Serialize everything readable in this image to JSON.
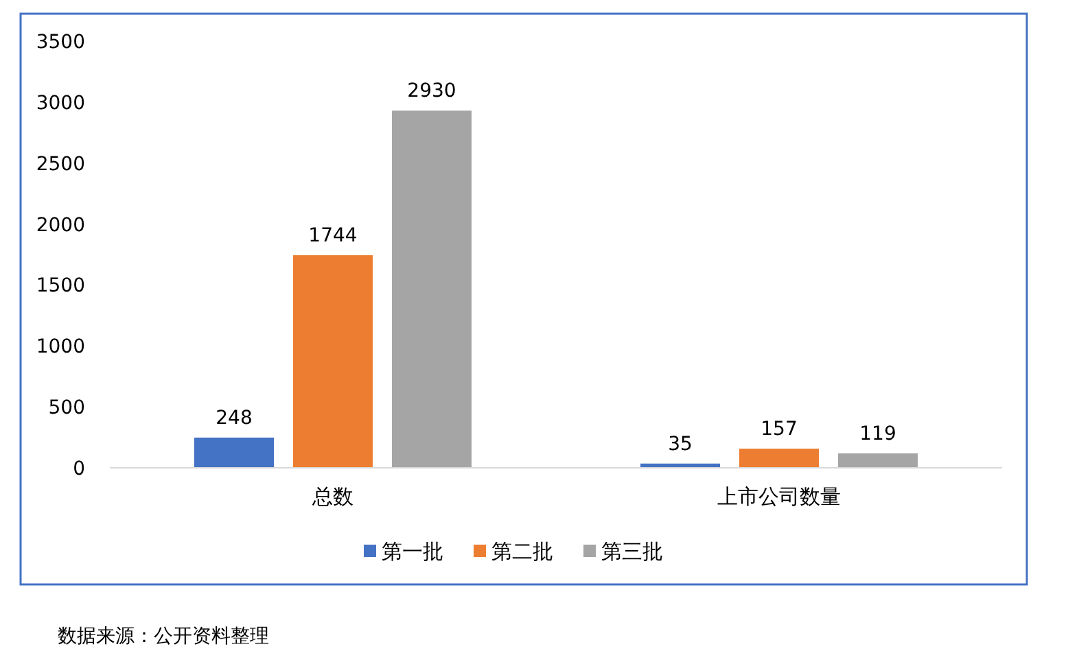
{
  "chart_data": {
    "type": "bar",
    "categories": [
      "总数",
      "上市公司数量"
    ],
    "series": [
      {
        "name": "第一批",
        "color": "#4472c4",
        "values": [
          248,
          35
        ]
      },
      {
        "name": "第二批",
        "color": "#ed7d31",
        "values": [
          1744,
          157
        ]
      },
      {
        "name": "第三批",
        "color": "#a5a5a5",
        "values": [
          2930,
          119
        ]
      }
    ],
    "ylim": [
      0,
      3500
    ],
    "yticks": [
      0,
      500,
      1000,
      1500,
      2000,
      2500,
      3000,
      3500
    ],
    "grid": false,
    "legend": "bottom",
    "data_labels": true,
    "annotations": [
      "数据来源：公开资料整理"
    ]
  }
}
